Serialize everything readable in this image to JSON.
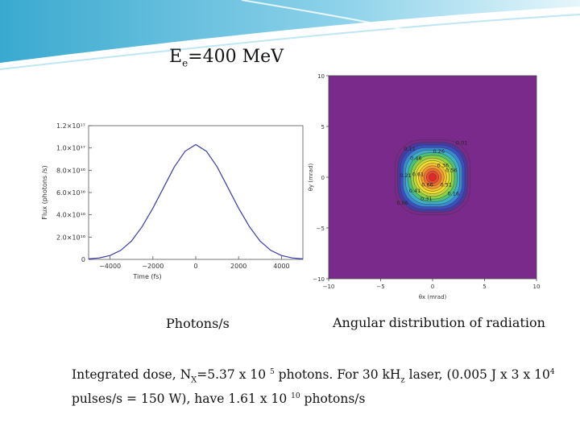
{
  "slide": {
    "title_main": "E",
    "title_sub": "e",
    "title_rest": "=400 MeV",
    "caption_left": "Photons/s",
    "caption_right": "Angular distribution of radiation",
    "note": {
      "p1": "Integrated dose, N",
      "p1_sub": "X",
      "p2": "=5.37 x 10 ",
      "p2_sup": "5",
      "p3": " photons. For  30 kH",
      "p3_sub": "z",
      "p4": " laser, (0.005 J x 3 x 10",
      "p4_sup": "4",
      "p5": " pulses/s = 150 W), have 1.61 x 10 ",
      "p5_sup": "10",
      "p6": " photons/s"
    },
    "colors": {
      "curve": "#3a3aa8",
      "contour_bg": "#7a2a8a"
    }
  },
  "chart_data": [
    {
      "type": "line",
      "title": "",
      "xlabel": "Time (fs)",
      "ylabel": "Flux (photons /s)",
      "xlim": [
        -5000,
        5000
      ],
      "ylim": [
        0,
        1.2e+17
      ],
      "x_ticks": [
        -4000,
        -2000,
        0,
        2000,
        4000
      ],
      "x_tick_labels": [
        "−4000",
        "−2000",
        "0",
        "2000",
        "4000"
      ],
      "y_ticks": [
        0,
        2e+16,
        4e+16,
        6e+16,
        8e+16,
        1e+17,
        1.2e+17
      ],
      "y_tick_labels": [
        "0",
        "2.0×10¹⁶",
        "4.0×10¹⁶",
        "6.0×10¹⁶",
        "8.0×10¹⁶",
        "1.0×10¹⁷",
        "1.2×10¹⁷"
      ],
      "series": [
        {
          "x": [
            -5000,
            -4500,
            -4000,
            -3500,
            -3000,
            -2500,
            -2000,
            -1500,
            -1000,
            -500,
            0,
            500,
            1000,
            1500,
            2000,
            2500,
            3000,
            3500,
            4000,
            4500,
            5000
          ],
          "values": [
            400000000000000.0,
            1300000000000000.0,
            3500000000000000.0,
            8100000000000000.0,
            1.65e+16,
            2.95e+16,
            4.6e+16,
            6.45e+16,
            8.3e+16,
            9.7e+16,
            1.03e+17,
            9.7e+16,
            8.3e+16,
            6.45e+16,
            4.6e+16,
            2.95e+16,
            1.65e+16,
            8100000000000000.0,
            3500000000000000.0,
            1300000000000000.0,
            400000000000000.0
          ]
        }
      ]
    },
    {
      "type": "heatmap",
      "title": "",
      "xlabel": "θx (mrad)",
      "ylabel": "θy (mrad)",
      "xlim": [
        -10,
        10
      ],
      "ylim": [
        -10,
        10
      ],
      "x_ticks": [
        -10,
        -5,
        0,
        5,
        10
      ],
      "x_tick_labels": [
        "−10",
        "−5",
        "0",
        "5",
        "10"
      ],
      "y_ticks": [
        -10,
        -5,
        0,
        5,
        10
      ],
      "y_tick_labels": [
        "−10",
        "−5",
        "0",
        "5",
        "10"
      ],
      "contour_levels": [
        0.01,
        0.06,
        0.11,
        0.16,
        0.21,
        0.26,
        0.31,
        0.36,
        0.41,
        0.46,
        0.51,
        0.56,
        0.61,
        0.66
      ],
      "level_colors": [
        "#7a2a8a",
        "#4a3aa0",
        "#3a50c0",
        "#3a8ad0",
        "#40b0c8",
        "#4cc07a",
        "#8ad048",
        "#c8d83a",
        "#f0e030",
        "#f5c030",
        "#f59a30",
        "#f07030",
        "#e84a30",
        "#e02828"
      ],
      "labels": [
        {
          "text": "0.01",
          "x": 2.8,
          "y": 3.2
        },
        {
          "text": "0.11",
          "x": -2.2,
          "y": 2.6
        },
        {
          "text": "0.26",
          "x": 0.6,
          "y": 2.4
        },
        {
          "text": "0.46",
          "x": -1.6,
          "y": 1.7
        },
        {
          "text": "0.36",
          "x": 1.0,
          "y": 1.0
        },
        {
          "text": "0.56",
          "x": 1.8,
          "y": 0.5
        },
        {
          "text": "0.21",
          "x": -2.6,
          "y": 0.0
        },
        {
          "text": "0.61",
          "x": -1.4,
          "y": 0.1
        },
        {
          "text": "0.51",
          "x": 1.3,
          "y": -0.9
        },
        {
          "text": "0.66",
          "x": -0.5,
          "y": -0.9
        },
        {
          "text": "0.41",
          "x": -1.7,
          "y": -1.5
        },
        {
          "text": "0.16",
          "x": 2.0,
          "y": -1.8
        },
        {
          "text": "0.31",
          "x": -0.6,
          "y": -2.3
        },
        {
          "text": "0.06",
          "x": -2.9,
          "y": -2.7
        }
      ]
    }
  ]
}
